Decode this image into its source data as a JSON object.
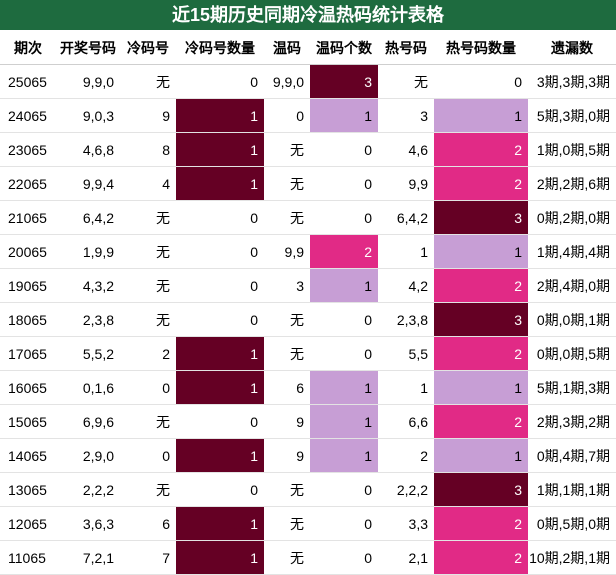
{
  "title": "近15期历史同期冷温热码统计表格",
  "headers": [
    "期次",
    "开奖号码",
    "冷码号",
    "冷码号数量",
    "温码",
    "温码个数",
    "热号码",
    "热号码数量",
    "遗漏数"
  ],
  "colors": {
    "title_bg": "#1e6b3f",
    "dark_maroon": "#650024",
    "light_purple": "#c79ed5",
    "hot_pink": "#e12a86"
  },
  "rows": [
    {
      "period": "25065",
      "numbers": "9,9,0",
      "cold": "无",
      "cold_count": "0",
      "warm": "9,9,0",
      "warm_count": "3",
      "hot": "无",
      "hot_count": "0",
      "missing": "3期,3期,3期"
    },
    {
      "period": "24065",
      "numbers": "9,0,3",
      "cold": "9",
      "cold_count": "1",
      "warm": "0",
      "warm_count": "1",
      "hot": "3",
      "hot_count": "1",
      "missing": "5期,3期,0期"
    },
    {
      "period": "23065",
      "numbers": "4,6,8",
      "cold": "8",
      "cold_count": "1",
      "warm": "无",
      "warm_count": "0",
      "hot": "4,6",
      "hot_count": "2",
      "missing": "1期,0期,5期"
    },
    {
      "period": "22065",
      "numbers": "9,9,4",
      "cold": "4",
      "cold_count": "1",
      "warm": "无",
      "warm_count": "0",
      "hot": "9,9",
      "hot_count": "2",
      "missing": "2期,2期,6期"
    },
    {
      "period": "21065",
      "numbers": "6,4,2",
      "cold": "无",
      "cold_count": "0",
      "warm": "无",
      "warm_count": "0",
      "hot": "6,4,2",
      "hot_count": "3",
      "missing": "0期,2期,0期"
    },
    {
      "period": "20065",
      "numbers": "1,9,9",
      "cold": "无",
      "cold_count": "0",
      "warm": "9,9",
      "warm_count": "2",
      "hot": "1",
      "hot_count": "1",
      "missing": "1期,4期,4期"
    },
    {
      "period": "19065",
      "numbers": "4,3,2",
      "cold": "无",
      "cold_count": "0",
      "warm": "3",
      "warm_count": "1",
      "hot": "4,2",
      "hot_count": "2",
      "missing": "2期,4期,0期"
    },
    {
      "period": "18065",
      "numbers": "2,3,8",
      "cold": "无",
      "cold_count": "0",
      "warm": "无",
      "warm_count": "0",
      "hot": "2,3,8",
      "hot_count": "3",
      "missing": "0期,0期,1期"
    },
    {
      "period": "17065",
      "numbers": "5,5,2",
      "cold": "2",
      "cold_count": "1",
      "warm": "无",
      "warm_count": "0",
      "hot": "5,5",
      "hot_count": "2",
      "missing": "0期,0期,5期"
    },
    {
      "period": "16065",
      "numbers": "0,1,6",
      "cold": "0",
      "cold_count": "1",
      "warm": "6",
      "warm_count": "1",
      "hot": "1",
      "hot_count": "1",
      "missing": "5期,1期,3期"
    },
    {
      "period": "15065",
      "numbers": "6,9,6",
      "cold": "无",
      "cold_count": "0",
      "warm": "9",
      "warm_count": "1",
      "hot": "6,6",
      "hot_count": "2",
      "missing": "2期,3期,2期"
    },
    {
      "period": "14065",
      "numbers": "2,9,0",
      "cold": "0",
      "cold_count": "1",
      "warm": "9",
      "warm_count": "1",
      "hot": "2",
      "hot_count": "1",
      "missing": "0期,4期,7期"
    },
    {
      "period": "13065",
      "numbers": "2,2,2",
      "cold": "无",
      "cold_count": "0",
      "warm": "无",
      "warm_count": "0",
      "hot": "2,2,2",
      "hot_count": "3",
      "missing": "1期,1期,1期"
    },
    {
      "period": "12065",
      "numbers": "3,6,3",
      "cold": "6",
      "cold_count": "1",
      "warm": "无",
      "warm_count": "0",
      "hot": "3,3",
      "hot_count": "2",
      "missing": "0期,5期,0期"
    },
    {
      "period": "11065",
      "numbers": "7,2,1",
      "cold": "7",
      "cold_count": "1",
      "warm": "无",
      "warm_count": "0",
      "hot": "2,1",
      "hot_count": "2",
      "missing": "10期,2期,1期"
    }
  ]
}
